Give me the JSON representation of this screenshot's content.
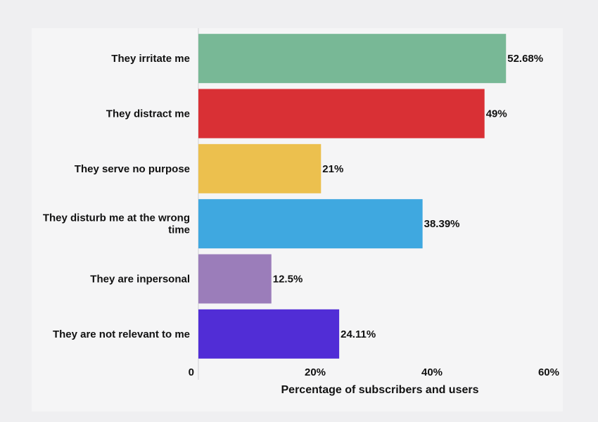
{
  "chart_data": {
    "type": "bar",
    "orientation": "horizontal",
    "categories": [
      "They irritate me",
      "They distract me",
      "They serve no purpose",
      "They disturb me at the wrong time",
      "They are inpersonal",
      "They are not relevant to me"
    ],
    "values": [
      52.68,
      49,
      21,
      38.39,
      12.5,
      24.11
    ],
    "value_labels": [
      "52.68%",
      "49%",
      "21%",
      "38.39%",
      "12.5%",
      "24.11%"
    ],
    "colors": [
      "#78b896",
      "#d93035",
      "#ecc04e",
      "#3fa8e0",
      "#9b7dba",
      "#512dd6"
    ],
    "xlim": [
      0,
      60
    ],
    "xticks": [
      0,
      20,
      40,
      60
    ],
    "xtick_labels": [
      "0",
      "20%",
      "40%",
      "60%"
    ],
    "xlabel": "Percentage of subscribers and users",
    "ylabel": "",
    "title": "",
    "grid": false,
    "legend": "none"
  }
}
